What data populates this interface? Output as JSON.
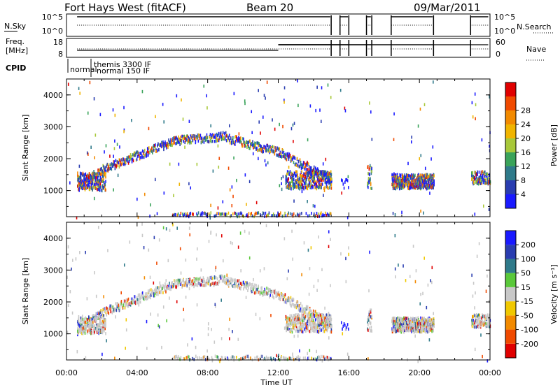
{
  "header": {
    "station": "Fort Hays West (fitACF)",
    "beam": "Beam 20",
    "date": "09/Mar/2011"
  },
  "summary": {
    "nsky_label": "N.Sky",
    "nsky_ticks": [
      "10^5",
      "10^0"
    ],
    "nsearch_label": "N.Search",
    "nsearch_ticks": [
      "10^5",
      "10^0"
    ],
    "freq_label": [
      "Freq.",
      "[MHz]"
    ],
    "freq_ticks": [
      18,
      8
    ],
    "nave_label": "Nave",
    "nave_ticks": [
      60,
      0
    ],
    "cpid_label": "CPID",
    "cpid_entries": [
      "normal",
      "themis 3300 IF",
      "normal 150 IF"
    ]
  },
  "chart_data": [
    {
      "type": "scatter",
      "title": "",
      "xlabel": "Time UT",
      "ylabel": "Slant Range [km]",
      "xlim": [
        0,
        24
      ],
      "ylim": [
        180,
        4500
      ],
      "xticks": [
        "00:00",
        "04:00",
        "08:00",
        "12:00",
        "16:00",
        "20:00",
        "00:00"
      ],
      "yticks": [
        1000,
        2000,
        3000,
        4000
      ],
      "colorbar": {
        "label": "Power [dB]",
        "ticks": [
          4,
          8,
          12,
          16,
          20,
          24,
          28
        ],
        "colors": [
          "#1a1aff",
          "#2a3db0",
          "#2f7a8a",
          "#3aa35a",
          "#a8c83a",
          "#f0b400",
          "#f28a00",
          "#f04a00",
          "#e00000"
        ]
      },
      "data_gaps_ut": [
        [
          15.0,
          15.5
        ],
        [
          16.0,
          17.0
        ],
        [
          17.3,
          18.4
        ],
        [
          20.8,
          22.9
        ]
      ]
    },
    {
      "type": "scatter",
      "title": "",
      "xlabel": "Time UT",
      "ylabel": "Slant Range [km]",
      "xlim": [
        0,
        24
      ],
      "ylim": [
        180,
        4500
      ],
      "xticks": [
        "00:00",
        "04:00",
        "08:00",
        "12:00",
        "16:00",
        "20:00",
        "00:00"
      ],
      "yticks": [
        1000,
        2000,
        3000,
        4000
      ],
      "colorbar": {
        "label": "Velocity [m s⁻¹]",
        "ticks": [
          200,
          100,
          50,
          15,
          -15,
          -50,
          -100,
          -200
        ],
        "colors": [
          "#1a1aff",
          "#2a3db0",
          "#2f7a8a",
          "#5ac83a",
          "#c8c8c8",
          "#f0c800",
          "#f28a00",
          "#f04a00",
          "#e00000"
        ]
      }
    }
  ]
}
